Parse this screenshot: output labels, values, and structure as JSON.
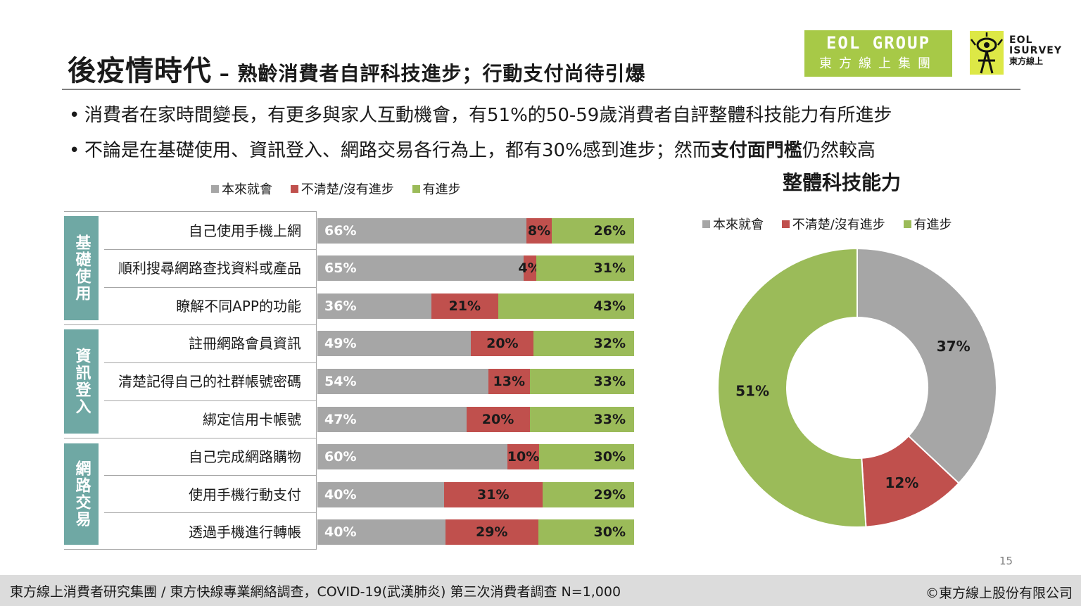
{
  "title": {
    "main": "後疫情時代",
    "sub": " – 熟齡消費者自評科技進步；行動支付尚待引爆"
  },
  "logos": {
    "eol_line1": "EOL GROUP",
    "eol_line2": "東方線上集團",
    "isurvey_line1": "EOL",
    "isurvey_line2": "ISURVEY",
    "isurvey_line3": "東方線上"
  },
  "bullets": [
    {
      "text": "消費者在家時間變長，有更多與家人互動機會，有51%的50-59歲消費者自評整體科技能力有所進步"
    },
    {
      "prefix": "不論是在基礎使用、資訊登入、網路交易各行為上，都有30%感到進步；然而",
      "bold": "支付面門檻",
      "suffix": "仍然較高"
    }
  ],
  "colors": {
    "gray": "#a6a6a6",
    "red": "#c0504d",
    "green": "#9bbb59",
    "teal": "#6fa8a4"
  },
  "legend": [
    {
      "label": "本來就會",
      "color": "#a6a6a6"
    },
    {
      "label": "不清楚/沒有進步",
      "color": "#c0504d"
    },
    {
      "label": "有進步",
      "color": "#9bbb59"
    }
  ],
  "groups": [
    {
      "label": "基礎使用"
    },
    {
      "label": "資訊登入"
    },
    {
      "label": "網路交易"
    }
  ],
  "chart_data": [
    {
      "type": "bar",
      "stacked": true,
      "orientation": "horizontal",
      "categories": [
        "自己使用手機上網",
        "順利搜尋網路查找資料或產品",
        "瞭解不同APP的功能",
        "註冊網路會員資訊",
        "清楚記得自己的社群帳號密碼",
        "綁定信用卡帳號",
        "自己完成網路購物",
        "使用手機行動支付",
        "透過手機進行轉帳"
      ],
      "series": [
        {
          "name": "本來就會",
          "values": [
            66,
            65,
            36,
            49,
            54,
            47,
            60,
            40,
            40
          ]
        },
        {
          "name": "不清楚/沒有進步",
          "values": [
            8,
            4,
            21,
            20,
            13,
            20,
            10,
            31,
            29
          ]
        },
        {
          "name": "有進步",
          "values": [
            26,
            31,
            43,
            32,
            33,
            33,
            30,
            29,
            30
          ]
        }
      ],
      "value_suffix": "%",
      "legend_position": "top"
    },
    {
      "type": "pie",
      "donut": true,
      "title": "整體科技能力",
      "labels": [
        "本來就會",
        "不清楚/沒有進步",
        "有進步"
      ],
      "values": [
        37,
        12,
        51
      ],
      "value_suffix": "%",
      "legend_position": "top"
    }
  ],
  "page_number": "15",
  "footer": {
    "left": "東方線上消費者研究集團 / 東方快線專業網絡調查，COVID-19(武漢肺炎) 第三次消費者調查 N=1,000",
    "right": "©東方線上股份有限公司"
  }
}
